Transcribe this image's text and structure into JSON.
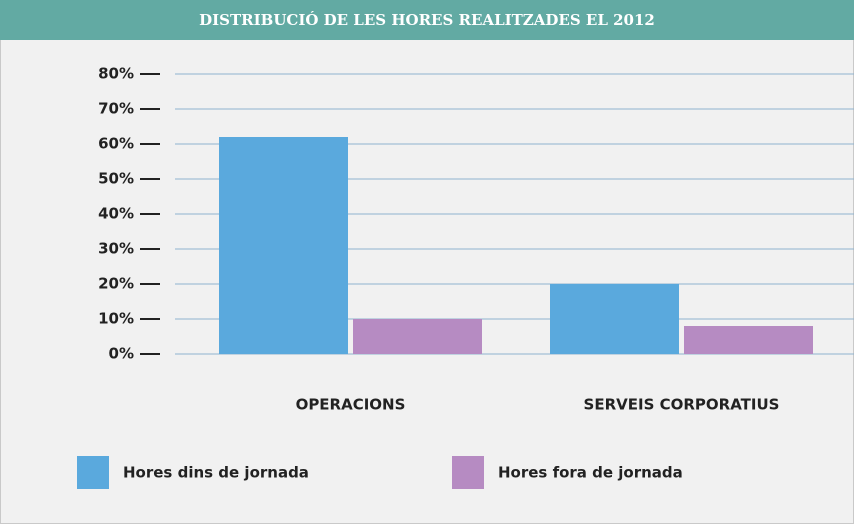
{
  "chart_data": {
    "type": "bar",
    "title": "DISTRIBUCIÓ DE LES HORES REALITZADES EL 2012",
    "categories": [
      "OPERACIONS",
      "SERVEIS CORPORATIUS"
    ],
    "series": [
      {
        "name": "Hores dins de jornada",
        "color": "#5aa9dd",
        "values": [
          62,
          20
        ]
      },
      {
        "name": "Hores fora de jornada",
        "color": "#b68bc2",
        "values": [
          10,
          8
        ]
      }
    ],
    "ylim": [
      0,
      80
    ],
    "yticks": [
      {
        "value": 0,
        "label": "0%"
      },
      {
        "value": 10,
        "label": "10%"
      },
      {
        "value": 20,
        "label": "20%"
      },
      {
        "value": 30,
        "label": "30%"
      },
      {
        "value": 40,
        "label": "40%"
      },
      {
        "value": 50,
        "label": "50%"
      },
      {
        "value": 60,
        "label": "60%"
      },
      {
        "value": 70,
        "label": "70%"
      },
      {
        "value": 80,
        "label": "80%"
      }
    ],
    "grid": true
  }
}
